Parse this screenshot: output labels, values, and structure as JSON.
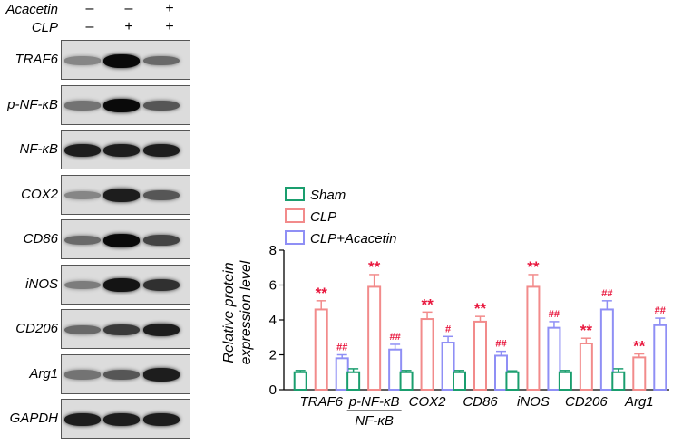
{
  "blot_panel": {
    "conditions": [
      {
        "label": "Acacetin",
        "signs": [
          "–",
          "–",
          "+"
        ]
      },
      {
        "label": "CLP",
        "signs": [
          "–",
          "+",
          "+"
        ]
      }
    ],
    "rows": [
      {
        "label": "TRAF6",
        "intensity": [
          0.35,
          1.0,
          0.5
        ]
      },
      {
        "label": "p-NF-κB",
        "intensity": [
          0.45,
          1.0,
          0.6
        ]
      },
      {
        "label": "NF-κB",
        "intensity": [
          0.9,
          0.9,
          0.9
        ]
      },
      {
        "label": "COX2",
        "intensity": [
          0.35,
          0.9,
          0.6
        ]
      },
      {
        "label": "CD86",
        "intensity": [
          0.5,
          1.0,
          0.7
        ]
      },
      {
        "label": "iNOS",
        "intensity": [
          0.4,
          0.95,
          0.8
        ]
      },
      {
        "label": "CD206",
        "intensity": [
          0.5,
          0.75,
          0.9
        ]
      },
      {
        "label": "Arg1",
        "intensity": [
          0.45,
          0.6,
          0.9
        ]
      },
      {
        "label": "GAPDH",
        "intensity": [
          0.9,
          0.9,
          0.9
        ]
      }
    ]
  },
  "chart_data": {
    "type": "bar",
    "ylabel_line1": "Relative protein",
    "ylabel_line2": "expression level",
    "ylim": [
      0,
      8
    ],
    "yticks": [
      "0",
      "2",
      "4",
      "6",
      "8"
    ],
    "categories": [
      "TRAF6",
      "p-NF-κB",
      "COX2",
      "CD86",
      "iNOS",
      "CD206",
      "Arg1"
    ],
    "pnfkb_denominator": "NF-κB",
    "series": [
      {
        "name": "Sham",
        "color": "#1a9e6e",
        "values": [
          1.0,
          1.0,
          1.0,
          1.0,
          1.0,
          1.0,
          1.0
        ],
        "errors": [
          0.1,
          0.2,
          0.1,
          0.1,
          0.08,
          0.1,
          0.2
        ],
        "marks": [
          "",
          "",
          "",
          "",
          "",
          "",
          ""
        ]
      },
      {
        "name": "CLP",
        "color": "#f28b8b",
        "values": [
          4.6,
          5.9,
          4.05,
          3.9,
          5.9,
          2.65,
          1.85
        ],
        "errors": [
          0.5,
          0.7,
          0.4,
          0.3,
          0.7,
          0.3,
          0.2
        ],
        "marks": [
          "**",
          "**",
          "**",
          "**",
          "**",
          "**",
          "**"
        ]
      },
      {
        "name": "CLP+Acacetin",
        "color": "#8f8ff5",
        "values": [
          1.8,
          2.3,
          2.7,
          1.95,
          3.55,
          4.6,
          3.7
        ],
        "errors": [
          0.2,
          0.3,
          0.35,
          0.25,
          0.35,
          0.5,
          0.4
        ],
        "marks": [
          "##",
          "##",
          "#",
          "##",
          "##",
          "##",
          "##"
        ]
      }
    ],
    "legend_position": "top-left"
  }
}
